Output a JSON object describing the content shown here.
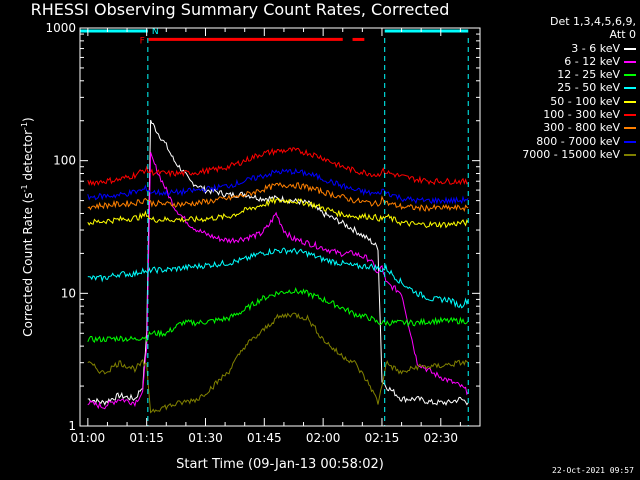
{
  "chart_data": {
    "type": "line",
    "title": "RHESSI Observing Summary Count Rates, Corrected",
    "xlabel": "Start Time (09-Jan-13 00:58:02)",
    "ylabel": "Corrected Count Rate (s",
    "ylabel_unit_exp": "-1",
    "ylabel_mid": " detector",
    "ylabel_unit_exp2": "-1",
    "ylabel_end": ")",
    "x_ticks": [
      "01:00",
      "01:15",
      "01:30",
      "01:45",
      "02:00",
      "02:15",
      "02:30"
    ],
    "x_tick_minutes": [
      60,
      75,
      90,
      105,
      120,
      135,
      150
    ],
    "xlim_minutes": [
      58.0,
      160.0
    ],
    "yscale": "log",
    "ylim": [
      1,
      1000
    ],
    "y_ticks": [
      "1",
      "10",
      "100",
      "1000"
    ],
    "y_tick_values": [
      1,
      10,
      100,
      1000
    ],
    "legend_header": [
      "Det 1,3,4,5,6,9,",
      "Att 0"
    ],
    "flag_labels": {
      "night": "N",
      "flare": "F"
    },
    "series": [
      {
        "name": "3 - 6 keV",
        "color": "#ffffff",
        "x": [
          60,
          64,
          68,
          72,
          74,
          75,
          76,
          78,
          80,
          82,
          84,
          86,
          88,
          90,
          93,
          96,
          100,
          104,
          108,
          112,
          116,
          120,
          124,
          128,
          132,
          134,
          135,
          136,
          138,
          140,
          144,
          148,
          152,
          155,
          157
        ],
        "y": [
          1.6,
          1.5,
          1.7,
          1.6,
          2.0,
          5,
          200,
          160,
          130,
          100,
          85,
          70,
          65,
          60,
          58,
          55,
          56,
          52,
          52,
          50,
          48,
          40,
          35,
          30,
          25,
          22,
          2.2,
          2,
          1.8,
          1.6,
          1.6,
          1.5,
          1.5,
          1.6,
          1.5
        ]
      },
      {
        "name": "6 - 12 keV",
        "color": "#ff00ff",
        "x": [
          60,
          64,
          68,
          72,
          74,
          75,
          76,
          78,
          80,
          82,
          84,
          86,
          88,
          90,
          93,
          96,
          100,
          104,
          106,
          108,
          110,
          112,
          116,
          120,
          124,
          128,
          132,
          134,
          135,
          136,
          138,
          140,
          144,
          148,
          152,
          155,
          157
        ],
        "y": [
          1.5,
          1.4,
          1.6,
          1.5,
          1.8,
          4,
          110,
          80,
          60,
          45,
          38,
          33,
          30,
          28,
          26,
          25,
          26,
          28,
          32,
          40,
          30,
          26,
          24,
          22,
          20,
          20,
          18,
          14,
          16,
          12,
          11,
          10,
          3,
          2.5,
          2.2,
          2,
          1.8
        ]
      },
      {
        "name": "12 - 25 keV",
        "color": "#00ff00",
        "x": [
          60,
          64,
          68,
          72,
          74,
          75,
          76,
          80,
          84,
          88,
          92,
          96,
          100,
          104,
          108,
          112,
          116,
          120,
          124,
          128,
          132,
          134,
          135,
          136,
          140,
          144,
          148,
          152,
          155,
          157
        ],
        "y": [
          4.5,
          4.5,
          4.6,
          4.5,
          4.7,
          4.6,
          5,
          5,
          6,
          6,
          6.2,
          6.5,
          7.5,
          9,
          10,
          10.5,
          10,
          9,
          8,
          7,
          6.5,
          6,
          6,
          6,
          6,
          6,
          6.2,
          6.2,
          6.2,
          6.2
        ]
      },
      {
        "name": "25 - 50 keV",
        "color": "#00ffff",
        "x": [
          60,
          64,
          68,
          72,
          74,
          75,
          76,
          80,
          84,
          88,
          92,
          96,
          100,
          104,
          108,
          112,
          116,
          120,
          124,
          128,
          132,
          134,
          135,
          136,
          140,
          144,
          148,
          152,
          155,
          157
        ],
        "y": [
          13,
          13,
          14,
          14,
          15,
          14,
          15,
          15,
          15.5,
          16,
          16.5,
          17,
          18,
          20,
          21,
          21,
          20,
          18,
          17,
          16,
          16,
          15.5,
          15,
          15.5,
          12,
          10,
          9,
          9,
          8,
          9
        ]
      },
      {
        "name": "50 - 100 keV",
        "color": "#ffff00",
        "x": [
          60,
          64,
          68,
          72,
          74,
          75,
          76,
          80,
          84,
          88,
          92,
          96,
          100,
          104,
          108,
          112,
          116,
          120,
          124,
          128,
          132,
          134,
          135,
          136,
          140,
          144,
          148,
          152,
          155,
          157
        ],
        "y": [
          34,
          35,
          36,
          37,
          38,
          40,
          36,
          36,
          36,
          36,
          37,
          38,
          42,
          46,
          50,
          50,
          48,
          44,
          40,
          38,
          38,
          37,
          36,
          38,
          34,
          33,
          33,
          33,
          34,
          34
        ]
      },
      {
        "name": "100 - 300 keV",
        "color": "#ff0000",
        "x": [
          60,
          64,
          68,
          72,
          74,
          75,
          76,
          80,
          84,
          88,
          92,
          96,
          100,
          104,
          108,
          112,
          116,
          120,
          124,
          128,
          132,
          134,
          135,
          136,
          140,
          144,
          148,
          152,
          155,
          157
        ],
        "y": [
          68,
          70,
          72,
          78,
          84,
          85,
          82,
          80,
          80,
          82,
          85,
          90,
          100,
          112,
          118,
          120,
          115,
          105,
          92,
          84,
          80,
          78,
          84,
          82,
          76,
          72,
          70,
          70,
          70,
          68
        ]
      },
      {
        "name": "300 - 800 keV",
        "color": "#ff8000",
        "x": [
          60,
          64,
          68,
          72,
          74,
          75,
          76,
          80,
          84,
          88,
          92,
          96,
          100,
          104,
          108,
          112,
          116,
          120,
          124,
          128,
          132,
          134,
          135,
          136,
          140,
          144,
          148,
          152,
          155,
          157
        ],
        "y": [
          45,
          46,
          47,
          48,
          50,
          52,
          48,
          47,
          47,
          48,
          50,
          52,
          55,
          60,
          65,
          66,
          63,
          58,
          54,
          50,
          48,
          47,
          52,
          48,
          45,
          44,
          44,
          44,
          44,
          44
        ]
      },
      {
        "name": "800 - 7000 keV",
        "color": "#0000ff",
        "x": [
          60,
          64,
          68,
          72,
          74,
          75,
          76,
          80,
          84,
          88,
          92,
          96,
          100,
          104,
          108,
          112,
          116,
          120,
          124,
          128,
          132,
          134,
          135,
          136,
          140,
          144,
          148,
          152,
          155,
          157
        ],
        "y": [
          53,
          54,
          55,
          58,
          60,
          62,
          58,
          57,
          58,
          60,
          62,
          65,
          70,
          76,
          82,
          83,
          80,
          73,
          66,
          60,
          57,
          56,
          60,
          58,
          52,
          50,
          50,
          50,
          50,
          52
        ]
      },
      {
        "name": "7000 - 15000 keV",
        "color": "#808000",
        "x": [
          60,
          64,
          68,
          72,
          74,
          75,
          76,
          80,
          84,
          88,
          92,
          96,
          100,
          104,
          108,
          112,
          116,
          120,
          124,
          128,
          132,
          134,
          135,
          136,
          140,
          144,
          148,
          152,
          155,
          157
        ],
        "y": [
          3,
          2.5,
          3,
          2.7,
          3,
          2.8,
          1.3,
          1.4,
          1.5,
          1.6,
          2,
          2.6,
          4,
          5,
          6.5,
          7,
          6.5,
          4.5,
          3.5,
          3,
          2,
          1.5,
          2,
          3,
          2.5,
          2.8,
          2.8,
          2.9,
          3,
          3
        ]
      }
    ],
    "night_flag": [
      {
        "x_start": 58.0,
        "x_end": 75.3,
        "y": 950
      },
      {
        "x_start": 135.7,
        "x_end": 157.0,
        "y": 950
      }
    ],
    "flare_flag": [
      {
        "x_start": 75.5,
        "x_end": 125.0,
        "y": 820
      },
      {
        "x_start": 127.5,
        "x_end": 130.5,
        "y": 820
      }
    ],
    "night_markers_minutes": [
      75.3,
      135.7,
      157.0
    ]
  },
  "footer": {
    "timestamp": "22-Oct-2021 09:57"
  }
}
